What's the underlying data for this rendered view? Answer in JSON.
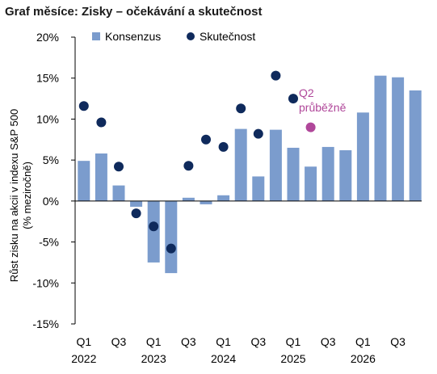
{
  "chart_data": {
    "type": "bar",
    "title": "Graf měsíce: Zisky – očekávání a skutečnost",
    "ylabel": "Růst zisku na akcii v indexu S&P 500",
    "ylabel_sub": "(% meziročně)",
    "ylim": [
      -15,
      20
    ],
    "yticks": [
      -15,
      -10,
      -5,
      0,
      5,
      10,
      15,
      20
    ],
    "ytick_labels": [
      "-15%",
      "-10%",
      "-5%",
      "0%",
      "5%",
      "10%",
      "15%",
      "20%"
    ],
    "categories": [
      "Q1 2022",
      "Q2 2022",
      "Q3 2022",
      "Q4 2022",
      "Q1 2023",
      "Q2 2023",
      "Q3 2023",
      "Q4 2023",
      "Q1 2024",
      "Q2 2024",
      "Q3 2024",
      "Q4 2024",
      "Q1 2025",
      "Q2 2025",
      "Q3 2025",
      "Q4 2025",
      "Q1 2026",
      "Q2 2026",
      "Q3 2026",
      "Q4 2026"
    ],
    "x_quarter_labels": [
      "Q1",
      "Q3",
      "Q1",
      "Q3",
      "Q1",
      "Q3",
      "Q1",
      "Q3",
      "Q1",
      "Q3"
    ],
    "x_year_labels": [
      "2022",
      "2023",
      "2024",
      "2025",
      "2026"
    ],
    "series": [
      {
        "name": "Konsenzus",
        "type": "bar",
        "values": [
          4.9,
          5.8,
          1.9,
          -0.7,
          -7.5,
          -8.8,
          0.4,
          -0.4,
          0.7,
          8.8,
          3.0,
          8.7,
          6.5,
          4.2,
          6.6,
          6.2,
          10.8,
          15.3,
          15.1,
          13.5
        ]
      },
      {
        "name": "Skutečnost",
        "type": "scatter",
        "values": [
          11.6,
          9.6,
          4.2,
          -1.5,
          -3.1,
          -5.8,
          4.3,
          7.5,
          6.6,
          11.3,
          8.2,
          15.3,
          12.5,
          null,
          null,
          null,
          null,
          null,
          null,
          null
        ]
      }
    ],
    "annotation": {
      "text_line1": "Q2",
      "text_line2": "průběžně",
      "category": "Q2 2025",
      "value": 9.0
    },
    "colors": {
      "bar": "#7B9CCD",
      "dot": "#0F2A5C",
      "annotation": "#B0479A",
      "axis": "#000000"
    },
    "legend_position": "top"
  }
}
